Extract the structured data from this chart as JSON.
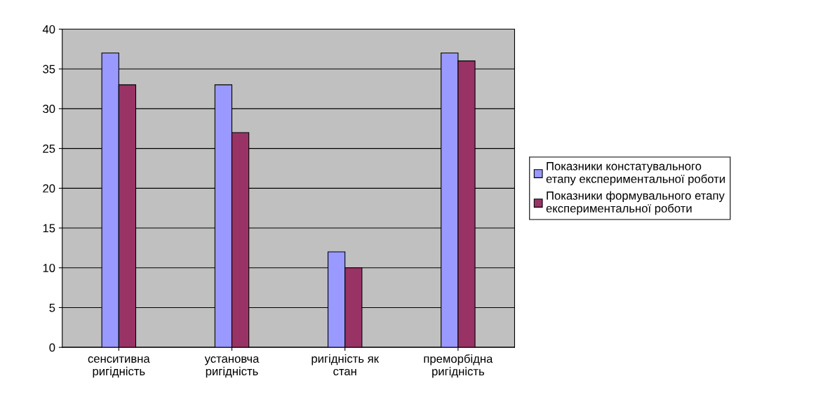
{
  "chart_data": {
    "type": "bar",
    "categories": [
      "сенситивна\nригідність",
      "установча\nригідність",
      "ригідність як\nстан",
      "преморбідна\nригідність"
    ],
    "series": [
      {
        "name": "Показники констатувального\nетапу експериментальної роботи",
        "color": "#9999ff",
        "values": [
          37,
          33,
          12,
          37
        ]
      },
      {
        "name": "Показники формувального етапу\nекспериментальної роботи",
        "color": "#993366",
        "values": [
          33,
          27,
          10,
          36
        ]
      }
    ],
    "ylim": [
      0,
      40
    ],
    "yticks": [
      0,
      5,
      10,
      15,
      20,
      25,
      30,
      35,
      40
    ],
    "grid": "y",
    "legend": "right"
  }
}
